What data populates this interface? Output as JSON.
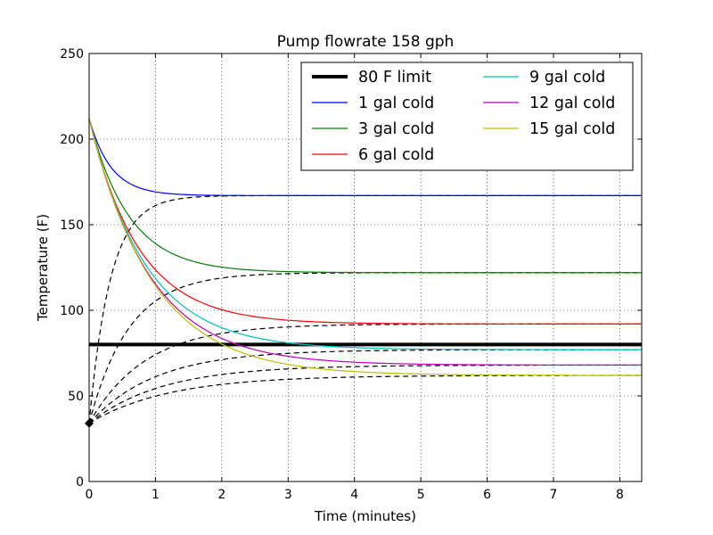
{
  "chart_data": {
    "type": "line",
    "title": "Pump flowrate 158 gph",
    "xlabel": "Time (minutes)",
    "ylabel": "Temperature (F)",
    "xlim": [
      0,
      8.33
    ],
    "ylim": [
      0,
      250
    ],
    "xticks": [
      0,
      1,
      2,
      3,
      4,
      5,
      6,
      7,
      8
    ],
    "yticks": [
      0,
      50,
      100,
      150,
      200,
      250
    ],
    "grid": true,
    "legend_position": "top-right",
    "legend_columns": 2,
    "limit": {
      "name": "80 F limit",
      "value": 80,
      "color": "#000000"
    },
    "hot_start": 212,
    "cold_start": 34,
    "series": [
      {
        "name": "1 gal cold",
        "color": "#0000ff",
        "final": 167,
        "hot_tau": 0.33,
        "cold_tau": 0.32
      },
      {
        "name": "3 gal cold",
        "color": "#008000",
        "final": 122,
        "hot_tau": 0.6,
        "cold_tau": 0.6
      },
      {
        "name": "6 gal cold",
        "color": "#ff0000",
        "final": 92,
        "hot_tau": 0.75,
        "cold_tau": 0.85
      },
      {
        "name": "9 gal cold",
        "color": "#00bfbf",
        "final": 77,
        "hot_tau": 0.85,
        "cold_tau": 1.0
      },
      {
        "name": "12 gal cold",
        "color": "#bf00bf",
        "final": 68,
        "hot_tau": 0.9,
        "cold_tau": 1.1
      },
      {
        "name": "15 gal cold",
        "color": "#bfbf00",
        "final": 62,
        "hot_tau": 0.95,
        "cold_tau": 1.2
      }
    ]
  }
}
